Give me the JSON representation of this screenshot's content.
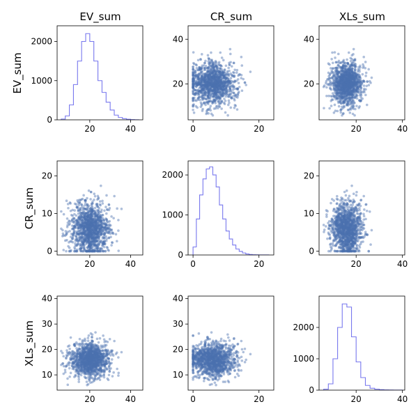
{
  "figure": {
    "column_titles": [
      "EV_sum",
      "CR_sum",
      "XLs_sum"
    ],
    "row_labels": [
      "EV_sum",
      "CR_sum",
      "XLs_sum"
    ]
  },
  "chart_data": {
    "type": "scatter",
    "variables": [
      "EV_sum",
      "CR_sum",
      "XLs_sum"
    ],
    "diagonal": "histogram",
    "off_diagonal": "scatter",
    "colors": {
      "histogram": "#7777ee",
      "scatter": "#4c72b0"
    },
    "distributions": {
      "EV_sum": {
        "range": [
          6,
          44
        ],
        "center": 19.5,
        "spread": 4.6
      },
      "CR_sum": {
        "range": [
          0,
          23
        ],
        "center": 5.5,
        "spread": 3.4
      },
      "XLs_sum": {
        "range": [
          6,
          40
        ],
        "center": 15.5,
        "spread": 3.3
      }
    },
    "histograms": [
      {
        "variable": "EV_sum",
        "bins": [
          6,
          8,
          10,
          12,
          14,
          16,
          18,
          20,
          22,
          24,
          26,
          28,
          30,
          32,
          34,
          36,
          38,
          40,
          42,
          44
        ],
        "counts": [
          20,
          100,
          380,
          900,
          1500,
          2000,
          2200,
          2000,
          1500,
          1000,
          700,
          450,
          250,
          120,
          60,
          30,
          15,
          5,
          2
        ]
      },
      {
        "variable": "CR_sum",
        "bins": [
          0,
          1,
          2,
          3,
          4,
          5,
          6,
          7,
          8,
          9,
          10,
          11,
          12,
          13,
          14,
          15,
          16,
          17,
          18,
          19,
          20,
          21,
          22,
          23
        ],
        "counts": [
          200,
          900,
          1500,
          1900,
          2150,
          2200,
          2000,
          1700,
          1250,
          900,
          600,
          400,
          250,
          150,
          90,
          50,
          25,
          12,
          6,
          3,
          2,
          1,
          1
        ]
      },
      {
        "variable": "XLs_sum",
        "bins": [
          6,
          8,
          10,
          12,
          14,
          16,
          18,
          20,
          22,
          24,
          26,
          28,
          30,
          32,
          34,
          36,
          38,
          40
        ],
        "counts": [
          30,
          200,
          1000,
          2000,
          2750,
          2650,
          1700,
          900,
          400,
          150,
          60,
          30,
          15,
          8,
          4,
          2,
          1
        ]
      }
    ],
    "axes": [
      [
        {
          "ylim": [
            0,
            2400
          ],
          "yticks": [
            0,
            1000,
            2000
          ],
          "xlim": [
            4,
            46
          ],
          "xticks": [
            20,
            40
          ]
        },
        {
          "ylim": [
            4,
            46
          ],
          "yticks": [
            20,
            40
          ],
          "xlim": [
            -1.5,
            24.5
          ],
          "xticks": [
            0,
            20
          ]
        },
        {
          "ylim": [
            4,
            46
          ],
          "yticks": [
            20,
            40
          ],
          "xlim": [
            4,
            41
          ],
          "xticks": [
            20,
            40
          ]
        }
      ],
      [
        {
          "ylim": [
            -1,
            24
          ],
          "yticks": [
            0,
            10,
            20
          ],
          "xlim": [
            4,
            46
          ],
          "xticks": [
            20,
            40
          ]
        },
        {
          "ylim": [
            0,
            2350
          ],
          "yticks": [
            0,
            1000,
            2000
          ],
          "xlim": [
            -1.5,
            24.5
          ],
          "xticks": [
            0,
            20
          ]
        },
        {
          "ylim": [
            -1,
            24
          ],
          "yticks": [
            0,
            10,
            20
          ],
          "xlim": [
            4,
            41
          ],
          "xticks": [
            20,
            40
          ]
        }
      ],
      [
        {
          "ylim": [
            4,
            41
          ],
          "yticks": [
            10,
            20,
            30,
            40
          ],
          "xlim": [
            4,
            46
          ],
          "xticks": [
            20,
            40
          ]
        },
        {
          "ylim": [
            4,
            41
          ],
          "yticks": [
            10,
            20,
            30,
            40
          ],
          "xlim": [
            -1.5,
            24.5
          ],
          "xticks": [
            0,
            20
          ]
        },
        {
          "ylim": [
            0,
            3000
          ],
          "yticks": [
            0,
            1000,
            2000
          ],
          "xlim": [
            4,
            41
          ],
          "xticks": [
            20,
            40
          ]
        }
      ]
    ],
    "grid": false,
    "legend": "none"
  }
}
